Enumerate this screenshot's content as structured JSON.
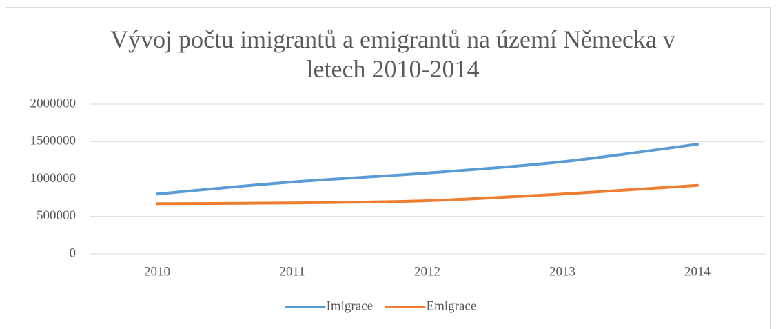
{
  "chart_data": {
    "type": "line",
    "title": "Vývoj počtu imigrantů a emigrantů na území Německa v letech 2010-2014",
    "categories": [
      "2010",
      "2011",
      "2012",
      "2013",
      "2014"
    ],
    "series": [
      {
        "name": "Imigrace",
        "color": "#5b9bd5",
        "values": [
          800000,
          960000,
          1080000,
          1230000,
          1465000
        ]
      },
      {
        "name": "Emigrace",
        "color": "#ed7d31",
        "values": [
          670000,
          680000,
          710000,
          800000,
          915000
        ]
      }
    ],
    "ylim": [
      0,
      2000000
    ],
    "yticks": [
      0,
      500000,
      1000000,
      1500000,
      2000000
    ],
    "grid": true,
    "legend": "bottom"
  }
}
